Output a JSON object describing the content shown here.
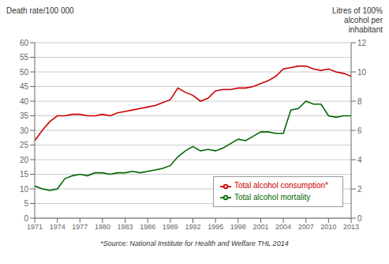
{
  "chart_data": {
    "type": "line",
    "x": [
      1971,
      1972,
      1973,
      1974,
      1975,
      1976,
      1977,
      1978,
      1979,
      1980,
      1981,
      1982,
      1983,
      1984,
      1985,
      1986,
      1987,
      1988,
      1989,
      1990,
      1991,
      1992,
      1993,
      1994,
      1995,
      1996,
      1997,
      1998,
      1999,
      2000,
      2001,
      2002,
      2003,
      2004,
      2005,
      2006,
      2007,
      2008,
      2009,
      2010,
      2011,
      2012,
      2013
    ],
    "xlim": [
      1971,
      2013
    ],
    "xticks": [
      1971,
      1974,
      1977,
      1980,
      1983,
      1986,
      1989,
      1992,
      1995,
      1998,
      2001,
      2004,
      2007,
      2010,
      2013
    ],
    "ylim": [
      0,
      60
    ],
    "yticks": [
      0,
      5,
      10,
      15,
      20,
      25,
      30,
      35,
      40,
      45,
      50,
      55,
      60
    ],
    "y2lim": [
      0,
      12
    ],
    "y2ticks": [
      0,
      2,
      4,
      6,
      8,
      10,
      12
    ],
    "y_label": "Death rate/100 000",
    "y2_label": "Litres of 100%\nalcohol per\ninhabitant",
    "annotations": [
      "*Source: National Institute for Health and Welfare THL 2014"
    ],
    "grid": true,
    "legend": "lower right",
    "series": [
      {
        "name": "Total alcohol consumption*",
        "color": "#cc0000",
        "axis": "y2",
        "values": [
          5.3,
          6.0,
          6.6,
          7.0,
          7.0,
          7.1,
          7.1,
          7.0,
          7.0,
          7.1,
          7.0,
          7.2,
          7.3,
          7.4,
          7.5,
          7.6,
          7.7,
          7.9,
          8.1,
          8.9,
          8.6,
          8.4,
          8.0,
          8.2,
          8.7,
          8.8,
          8.8,
          8.9,
          8.9,
          9.0,
          9.2,
          9.4,
          9.7,
          10.2,
          10.3,
          10.4,
          10.4,
          10.2,
          10.1,
          10.2,
          10.0,
          9.9,
          9.7
        ]
      },
      {
        "name": "Total alcohol mortality",
        "color": "#006600",
        "values": [
          11,
          10,
          9.5,
          10,
          13.5,
          14.5,
          15,
          14.5,
          15.5,
          15.5,
          15,
          15.5,
          15.5,
          16,
          15.5,
          16,
          16.5,
          17,
          18,
          21,
          23,
          24.5,
          23,
          23.5,
          23,
          24,
          25.5,
          27,
          26.5,
          28,
          29.5,
          29.5,
          29,
          29,
          37,
          37.5,
          40,
          39,
          39,
          35,
          34.5,
          35,
          35
        ]
      }
    ]
  }
}
